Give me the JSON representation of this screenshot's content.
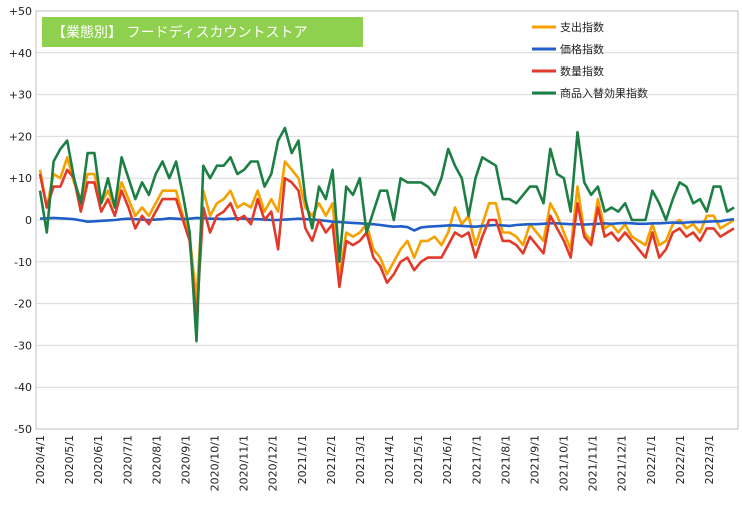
{
  "chart_data": {
    "type": "line",
    "title": "【業態別】 フードディスカウントストア",
    "ylim": [
      -50,
      50
    ],
    "y_ticks": [
      "+50",
      "+40",
      "+30",
      "+20",
      "+10",
      "0",
      "-10",
      "-20",
      "-30",
      "-40",
      "-50"
    ],
    "x_tick_labels": [
      "2020/4/1",
      "2020/5/1",
      "2020/6/1",
      "2020/7/1",
      "2020/8/1",
      "2020/9/1",
      "2020/10/1",
      "2020/11/1",
      "2020/12/1",
      "2021/1/1",
      "2021/2/1",
      "2021/3/1",
      "2021/4/1",
      "2021/5/1",
      "2021/6/1",
      "2021/7/1",
      "2021/8/1",
      "2021/9/1",
      "2021/10/1",
      "2021/11/1",
      "2021/12/1",
      "2022/1/1",
      "2022/2/1",
      "2022/3/1"
    ],
    "grid": true,
    "legend_position": "top-right",
    "series": [
      {
        "name": "支出指数",
        "color": "#f5a100",
        "values": [
          12,
          3,
          11,
          10,
          15,
          9,
          5,
          11,
          11,
          4,
          7,
          3,
          9,
          5,
          1,
          3,
          1,
          4,
          7,
          7,
          7,
          1,
          -4,
          -19,
          7,
          1,
          4,
          5,
          7,
          3,
          4,
          3,
          7,
          2,
          5,
          2,
          14,
          12,
          10,
          3,
          1,
          4,
          1,
          4,
          -14,
          -3,
          -4,
          -3,
          -1,
          -7,
          -9,
          -13,
          -10,
          -7,
          -5,
          -9,
          -5,
          -5,
          -4,
          -6,
          -3,
          3,
          -1,
          1,
          -6,
          -1,
          4,
          4,
          -3,
          -3,
          -4,
          -6,
          -1,
          -3,
          -5,
          4,
          1,
          -3,
          -7,
          8,
          -3,
          -5,
          5,
          -2,
          -1,
          -3,
          -1,
          -4,
          -5,
          -6,
          -1,
          -6,
          -5,
          -1,
          0,
          -2,
          -1,
          -3,
          1,
          1,
          -2,
          -1,
          0
        ]
      },
      {
        "name": "価格指数",
        "color": "#1f5fc7",
        "values": [
          0.3,
          0.4,
          0.5,
          0.4,
          0.3,
          0.2,
          -0.1,
          -0.4,
          -0.3,
          -0.2,
          -0.1,
          0,
          0.2,
          0.3,
          0.2,
          0.1,
          0,
          0.1,
          0.2,
          0.4,
          0.3,
          0.2,
          0.3,
          0.5,
          0.4,
          0.3,
          0.3,
          0.2,
          0.3,
          0.4,
          0.3,
          0.2,
          0.2,
          0.1,
          0,
          0,
          0.1,
          0.2,
          0.3,
          0.2,
          0.1,
          0,
          -0.2,
          -0.4,
          -0.5,
          -0.6,
          -0.7,
          -0.8,
          -0.9,
          -1.0,
          -1.2,
          -1.4,
          -1.6,
          -1.5,
          -1.7,
          -2.5,
          -1.8,
          -1.6,
          -1.5,
          -1.4,
          -1.3,
          -1.3,
          -1.4,
          -1.5,
          -1.6,
          -1.4,
          -1.3,
          -1.2,
          -1.3,
          -1.4,
          -1.2,
          -1.1,
          -1.0,
          -1.0,
          -0.9,
          -0.8,
          -0.8,
          -0.9,
          -1.0,
          -1.0,
          -1.1,
          -1.0,
          -0.9,
          -0.8,
          -0.9,
          -0.8,
          -0.7,
          -0.8,
          -0.9,
          -0.9,
          -0.8,
          -0.8,
          -0.7,
          -0.6,
          -0.7,
          -0.6,
          -0.5,
          -0.5,
          -0.4,
          -0.3,
          -0.3,
          0,
          0.2
        ]
      },
      {
        "name": "数量指数",
        "color": "#e23a2a",
        "values": [
          11,
          3,
          8,
          8,
          12,
          10,
          2,
          9,
          9,
          2,
          5,
          1,
          7,
          3,
          -2,
          1,
          -1,
          2,
          5,
          5,
          5,
          0,
          -5,
          -24,
          3,
          -3,
          1,
          2,
          4,
          0,
          1,
          -1,
          5,
          0,
          2,
          -7,
          10,
          9,
          7,
          -2,
          -5,
          0,
          -3,
          -1,
          -16,
          -5,
          -6,
          -5,
          -3,
          -9,
          -11,
          -15,
          -13,
          -10,
          -9,
          -12,
          -10,
          -9,
          -9,
          -9,
          -6,
          -3,
          -4,
          -3,
          -9,
          -4,
          0,
          0,
          -5,
          -5,
          -6,
          -8,
          -4,
          -6,
          -8,
          1,
          -2,
          -5,
          -9,
          4,
          -4,
          -6,
          3,
          -4,
          -3,
          -5,
          -3,
          -5,
          -7,
          -9,
          -3,
          -9,
          -7,
          -3,
          -2,
          -4,
          -3,
          -5,
          -2,
          -2,
          -4,
          -3,
          -2
        ]
      },
      {
        "name": "商品入替効果指数",
        "color": "#1e7f45",
        "values": [
          7,
          -3,
          14,
          17,
          19,
          10,
          4,
          16,
          16,
          4,
          10,
          3,
          15,
          10,
          5,
          9,
          6,
          11,
          14,
          10,
          14,
          6,
          -3,
          -29,
          13,
          10,
          13,
          13,
          15,
          11,
          12,
          14,
          14,
          8,
          11,
          19,
          22,
          16,
          19,
          5,
          -2,
          8,
          5,
          12,
          -10,
          8,
          6,
          10,
          -3,
          2,
          7,
          7,
          0,
          10,
          9,
          9,
          9,
          8,
          6,
          10,
          17,
          13,
          10,
          1,
          10,
          15,
          14,
          13,
          5,
          5,
          4,
          6,
          8,
          8,
          4,
          17,
          11,
          10,
          2,
          21,
          9,
          6,
          8,
          2,
          3,
          2,
          4,
          0,
          0,
          0,
          7,
          4,
          0,
          5,
          9,
          8,
          4,
          5,
          2,
          8,
          8,
          2,
          3
        ]
      }
    ]
  }
}
